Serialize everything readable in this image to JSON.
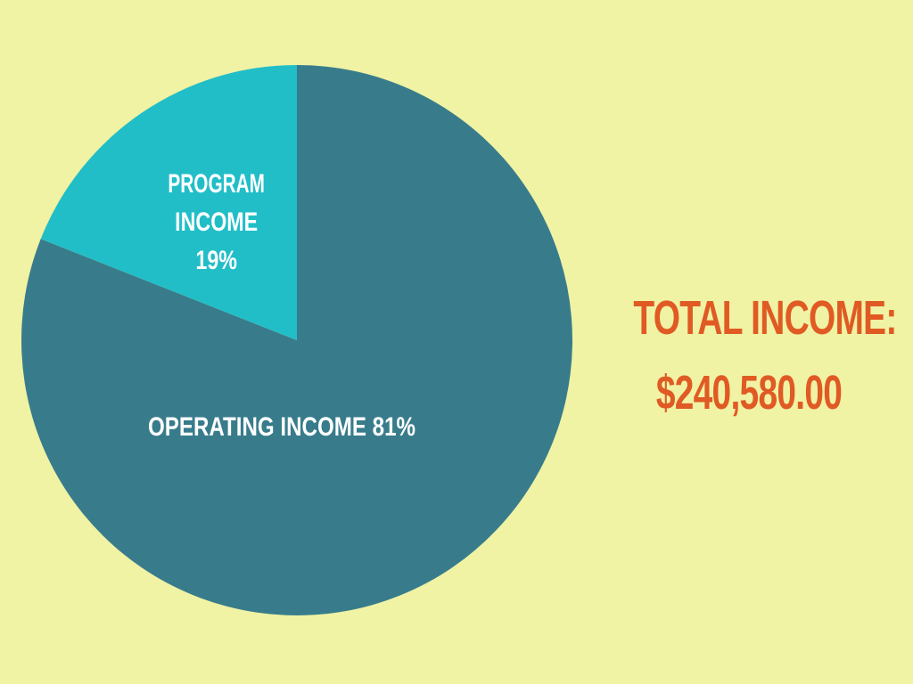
{
  "chart_data": {
    "type": "pie",
    "slices": [
      {
        "label_lines": [
          "OPERATING INCOME 81%"
        ],
        "value": 81,
        "color": "#387c8c"
      },
      {
        "label_lines": [
          "PROGRAM",
          "INCOME",
          "19%"
        ],
        "value": 19,
        "color": "#21bec8"
      }
    ]
  },
  "total": {
    "label": "TOTAL INCOME:",
    "value": "$240,580.00",
    "color": "#e05a24"
  }
}
